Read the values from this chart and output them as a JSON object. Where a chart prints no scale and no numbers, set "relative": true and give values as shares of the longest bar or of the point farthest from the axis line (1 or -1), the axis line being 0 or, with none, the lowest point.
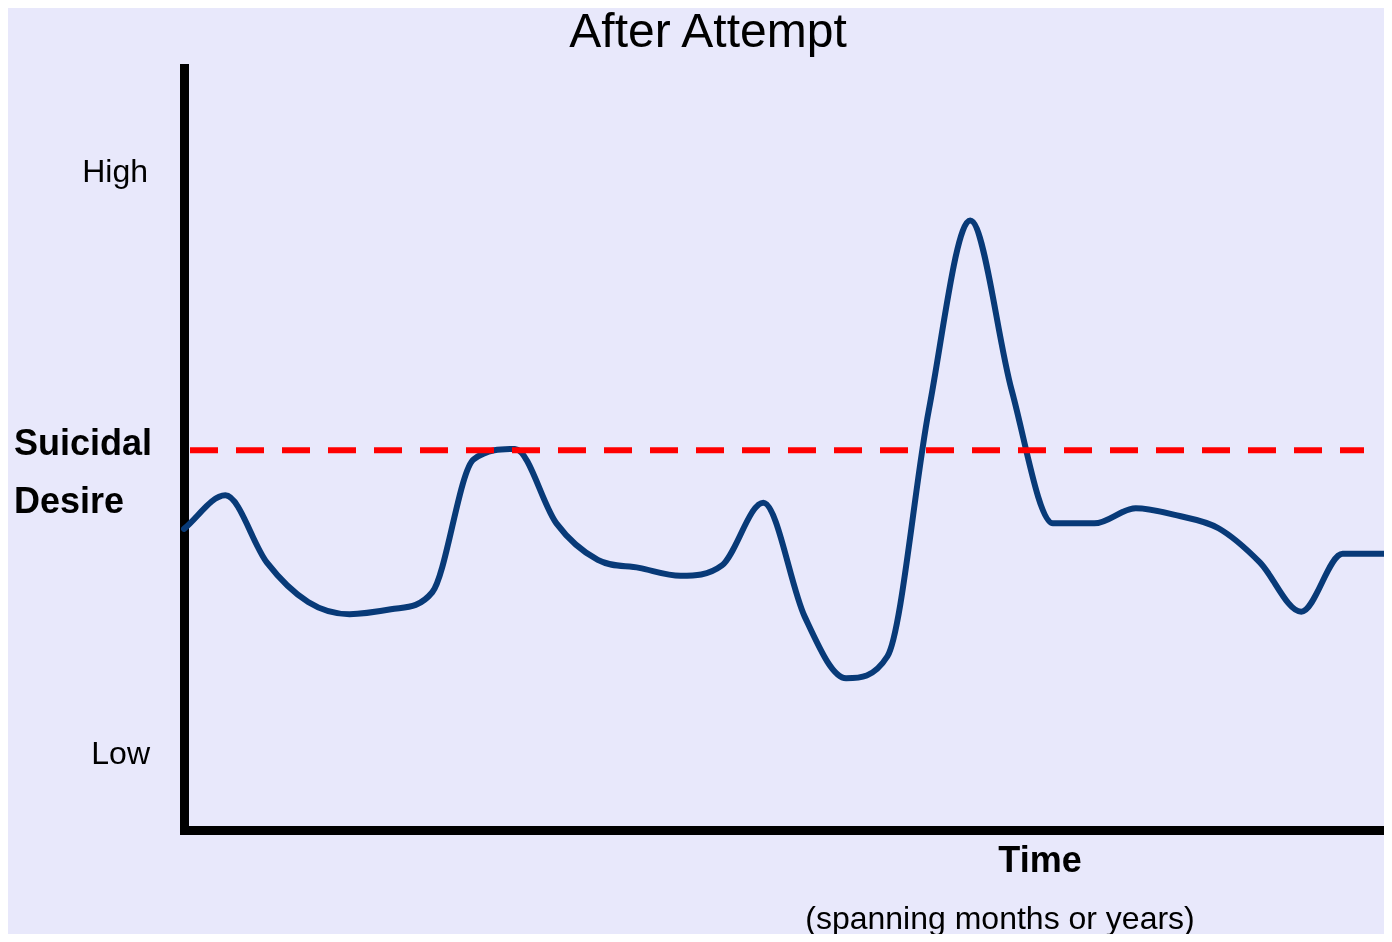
{
  "chart_data": {
    "type": "line",
    "title": "After Attempt",
    "xlabel": "Time",
    "ylabel": "Suicidal Desire",
    "relative": true,
    "legend": false,
    "marker": "none",
    "line_style": "solid",
    "categories": [
      null,
      null,
      null,
      null,
      null,
      null,
      null,
      null,
      null,
      null,
      null,
      null,
      null,
      null,
      null,
      null,
      null,
      null,
      null,
      null,
      null,
      null,
      null,
      null,
      null,
      null,
      null,
      null,
      null,
      null
    ],
    "series": [
      {
        "color": "#083a78",
        "values": [
          0.494,
          0.549,
          0.439,
          0.374,
          0.354,
          0.362,
          0.39,
          0.608,
          0.625,
          0.503,
          0.443,
          0.43,
          0.417,
          0.434,
          0.537,
          0.35,
          0.249,
          0.285,
          0.689,
          1.0,
          0.722,
          0.503,
          0.503,
          0.528,
          0.516,
          0.495,
          0.439,
          0.358,
          0.453,
          0.453
        ]
      }
    ],
    "ref_lines": [
      {
        "axis": "y",
        "value": 0.623,
        "color": "#ff0000",
        "line_style": "dashed"
      }
    ],
    "annotations": [
      "High",
      "Low",
      "(spanning months or years)"
    ]
  }
}
